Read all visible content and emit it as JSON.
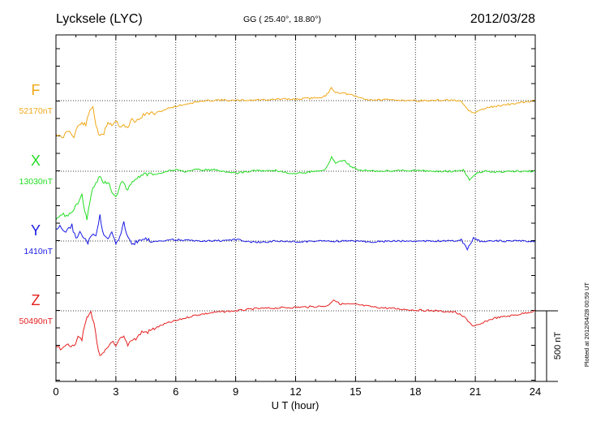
{
  "chart_data": {
    "type": "line",
    "title": "Lycksele (LYC)",
    "subtitle": "GG ( 25.40°,  18.80°)",
    "date": "2012/03/28",
    "xlabel": "U T (hour)",
    "xlim": [
      0,
      24
    ],
    "xticks": [
      "0",
      "3",
      "6",
      "9",
      "12",
      "15",
      "18",
      "21",
      "24"
    ],
    "grid": true,
    "scale_bar_label": "500 nT",
    "scale_bar_nT": 500,
    "footer": "Plotted at 2012/04/28 00:59 UT",
    "series": [
      {
        "name": "F",
        "baseline_label": "52170nT",
        "baseline_nT": 52170,
        "color": "#f0a818",
        "unit": "nT",
        "x": [
          0,
          0.3,
          0.6,
          0.9,
          1.1,
          1.3,
          1.5,
          1.7,
          1.85,
          2.0,
          2.2,
          2.4,
          2.6,
          2.8,
          3.0,
          3.2,
          3.4,
          3.6,
          3.8,
          4.0,
          4.3,
          4.6,
          5.0,
          5.5,
          6.0,
          6.5,
          7.0,
          8.0,
          9.0,
          10.0,
          11.0,
          12.0,
          13.0,
          13.5,
          13.8,
          14.0,
          14.5,
          15.0,
          15.5,
          16.0,
          17.0,
          18.0,
          19.0,
          19.8,
          20.3,
          20.6,
          20.9,
          21.2,
          21.6,
          22.0,
          22.5,
          23.0,
          24.0
        ],
        "y": [
          -230,
          -270,
          -210,
          -250,
          -180,
          -160,
          -170,
          -70,
          -40,
          -170,
          -260,
          -230,
          -150,
          -170,
          -140,
          -180,
          -170,
          -200,
          -130,
          -150,
          -110,
          -90,
          -90,
          -60,
          -40,
          -25,
          -10,
          5,
          0,
          5,
          10,
          10,
          20,
          30,
          90,
          60,
          50,
          30,
          10,
          5,
          5,
          0,
          0,
          5,
          -10,
          -60,
          -90,
          -70,
          -50,
          -40,
          -30,
          -20,
          0
        ]
      },
      {
        "name": "X",
        "baseline_label": "13030nT",
        "baseline_nT": 13030,
        "color": "#22dd22",
        "unit": "nT",
        "x": [
          0,
          0.3,
          0.6,
          0.9,
          1.1,
          1.3,
          1.45,
          1.55,
          1.7,
          1.85,
          2.0,
          2.2,
          2.4,
          2.6,
          2.8,
          3.0,
          3.3,
          3.6,
          3.9,
          4.2,
          4.5,
          5.0,
          5.5,
          6.0,
          6.5,
          7.0,
          8.0,
          9.0,
          10.0,
          11.0,
          12.0,
          13.0,
          13.5,
          13.8,
          14.0,
          14.4,
          14.8,
          15.2,
          16.0,
          17.0,
          18.0,
          19.0,
          20.0,
          20.4,
          20.7,
          21.0,
          21.5,
          22.0,
          23.0,
          24.0
        ],
        "y": [
          -330,
          -300,
          -320,
          -260,
          -230,
          -160,
          -290,
          -340,
          -210,
          -110,
          -80,
          -40,
          -90,
          -70,
          -150,
          -180,
          -70,
          -130,
          -60,
          -40,
          -20,
          -20,
          0,
          10,
          -5,
          10,
          10,
          -15,
          5,
          5,
          -20,
          0,
          10,
          100,
          60,
          80,
          30,
          10,
          0,
          5,
          5,
          0,
          0,
          10,
          -60,
          -20,
          0,
          -5,
          0,
          0
        ]
      },
      {
        "name": "Y",
        "baseline_label": "1410nT",
        "baseline_nT": 1410,
        "color": "#1a1ae6",
        "unit": "nT",
        "x": [
          0,
          0.2,
          0.5,
          0.8,
          1.0,
          1.2,
          1.4,
          1.6,
          1.8,
          2.0,
          2.2,
          2.4,
          2.6,
          2.8,
          3.0,
          3.2,
          3.4,
          3.6,
          3.8,
          4.0,
          4.5,
          5.0,
          6.0,
          7.0,
          8.0,
          9.0,
          10.0,
          11.0,
          12.0,
          13.0,
          14.0,
          15.0,
          16.0,
          17.0,
          18.0,
          19.0,
          20.0,
          20.3,
          20.6,
          20.9,
          21.3,
          22.0,
          23.0,
          24.0
        ],
        "y": [
          80,
          100,
          60,
          110,
          10,
          70,
          30,
          -20,
          50,
          30,
          180,
          30,
          10,
          60,
          -20,
          30,
          130,
          30,
          -20,
          -10,
          10,
          0,
          10,
          0,
          0,
          10,
          -10,
          0,
          -5,
          0,
          0,
          0,
          -5,
          0,
          0,
          0,
          0,
          10,
          -60,
          20,
          -5,
          0,
          0,
          0
        ]
      },
      {
        "name": "Z",
        "baseline_label": "50490nT",
        "baseline_nT": 50490,
        "color": "#e62020",
        "unit": "nT",
        "x": [
          0,
          0.3,
          0.6,
          0.9,
          1.1,
          1.3,
          1.5,
          1.6,
          1.75,
          1.9,
          2.05,
          2.2,
          2.4,
          2.6,
          2.8,
          3.0,
          3.2,
          3.4,
          3.6,
          3.8,
          4.0,
          4.3,
          4.6,
          5.0,
          5.5,
          6.0,
          7.0,
          8.0,
          9.0,
          10.0,
          11.0,
          12.0,
          13.0,
          13.6,
          13.9,
          14.2,
          15.0,
          16.0,
          17.0,
          18.0,
          19.0,
          20.0,
          20.5,
          20.9,
          21.2,
          21.6,
          22.0,
          23.0,
          24.0
        ],
        "y": [
          -250,
          -280,
          -230,
          -260,
          -170,
          -200,
          -70,
          -40,
          -10,
          -80,
          -220,
          -330,
          -300,
          -260,
          -210,
          -260,
          -200,
          -190,
          -240,
          -200,
          -200,
          -150,
          -150,
          -120,
          -90,
          -70,
          -30,
          -10,
          0,
          15,
          20,
          25,
          30,
          35,
          80,
          50,
          45,
          25,
          15,
          5,
          0,
          -10,
          -50,
          -110,
          -100,
          -70,
          -50,
          -30,
          0
        ]
      }
    ]
  }
}
